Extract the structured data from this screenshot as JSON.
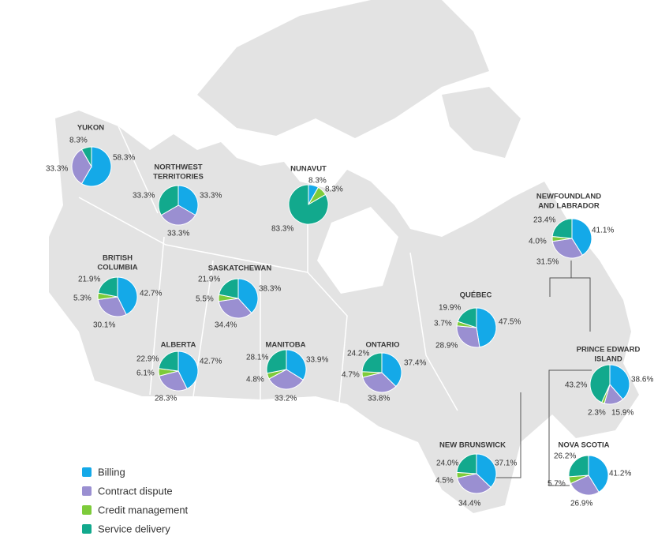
{
  "legend": [
    {
      "name": "Billing",
      "color": "#14a9e8"
    },
    {
      "name": "Contract dispute",
      "color": "#9a8fd1"
    },
    {
      "name": "Credit management",
      "color": "#7dcb3a"
    },
    {
      "name": "Service delivery",
      "color": "#12a98d"
    }
  ],
  "chart_data": [
    {
      "type": "pie",
      "title": [
        "YUKON"
      ],
      "values": [
        58.3,
        33.3,
        0,
        8.3
      ],
      "value_labels": [
        "58.3%",
        "33.3%",
        null,
        "8.3%"
      ]
    },
    {
      "type": "pie",
      "title": [
        "NORTHWEST",
        "TERRITORIES"
      ],
      "values": [
        33.3,
        33.3,
        0,
        33.3
      ],
      "value_labels": [
        "33.3%",
        "33.3%",
        null,
        "33.3%"
      ]
    },
    {
      "type": "pie",
      "title": [
        "NUNAVUT"
      ],
      "values": [
        8.3,
        0,
        8.3,
        83.3
      ],
      "value_labels": [
        "8.3%",
        null,
        "8.3%",
        "83.3%"
      ]
    },
    {
      "type": "pie",
      "title": [
        "NEWFOUNDLAND",
        "AND LABRADOR"
      ],
      "values": [
        41.1,
        31.5,
        4.0,
        23.4
      ],
      "value_labels": [
        "41.1%",
        "31.5%",
        "4.0%",
        "23.4%"
      ]
    },
    {
      "type": "pie",
      "title": [
        "BRITISH",
        "COLUMBIA"
      ],
      "values": [
        42.7,
        30.1,
        5.3,
        21.9
      ],
      "value_labels": [
        "42.7%",
        "30.1%",
        "5.3%",
        "21.9%"
      ]
    },
    {
      "type": "pie",
      "title": [
        "SASKATCHEWAN"
      ],
      "values": [
        38.3,
        34.4,
        5.5,
        21.9
      ],
      "value_labels": [
        "38.3%",
        "34.4%",
        "5.5%",
        "21.9%"
      ]
    },
    {
      "type": "pie",
      "title": [
        "QUÉBEC"
      ],
      "values": [
        47.5,
        28.9,
        3.7,
        19.9
      ],
      "value_labels": [
        "47.5%",
        "28.9%",
        "3.7%",
        "19.9%"
      ]
    },
    {
      "type": "pie",
      "title": [
        "ALBERTA"
      ],
      "values": [
        42.7,
        28.3,
        6.1,
        22.9
      ],
      "value_labels": [
        "42.7%",
        "28.3%",
        "6.1%",
        "22.9%"
      ]
    },
    {
      "type": "pie",
      "title": [
        "MANITOBA"
      ],
      "values": [
        33.9,
        33.2,
        4.8,
        28.1
      ],
      "value_labels": [
        "33.9%",
        "33.2%",
        "4.8%",
        "28.1%"
      ]
    },
    {
      "type": "pie",
      "title": [
        "ONTARIO"
      ],
      "values": [
        37.4,
        33.8,
        4.7,
        24.2
      ],
      "value_labels": [
        "37.4%",
        "33.8%",
        "4.7%",
        "24.2%"
      ]
    },
    {
      "type": "pie",
      "title": [
        "PRINCE EDWARD",
        "ISLAND"
      ],
      "values": [
        38.6,
        15.9,
        2.3,
        43.2
      ],
      "value_labels": [
        "38.6%",
        "15.9%",
        "2.3%",
        "43.2%"
      ]
    },
    {
      "type": "pie",
      "title": [
        "NEW BRUNSWICK"
      ],
      "values": [
        37.1,
        34.4,
        4.5,
        24.0
      ],
      "value_labels": [
        "37.1%",
        "34.4%",
        "4.5%",
        "24.0%"
      ]
    },
    {
      "type": "pie",
      "title": [
        "NOVA SCOTIA"
      ],
      "values": [
        41.2,
        26.9,
        5.7,
        26.2
      ],
      "value_labels": [
        "41.2%",
        "26.9%",
        "5.7%",
        "26.2%"
      ]
    }
  ]
}
